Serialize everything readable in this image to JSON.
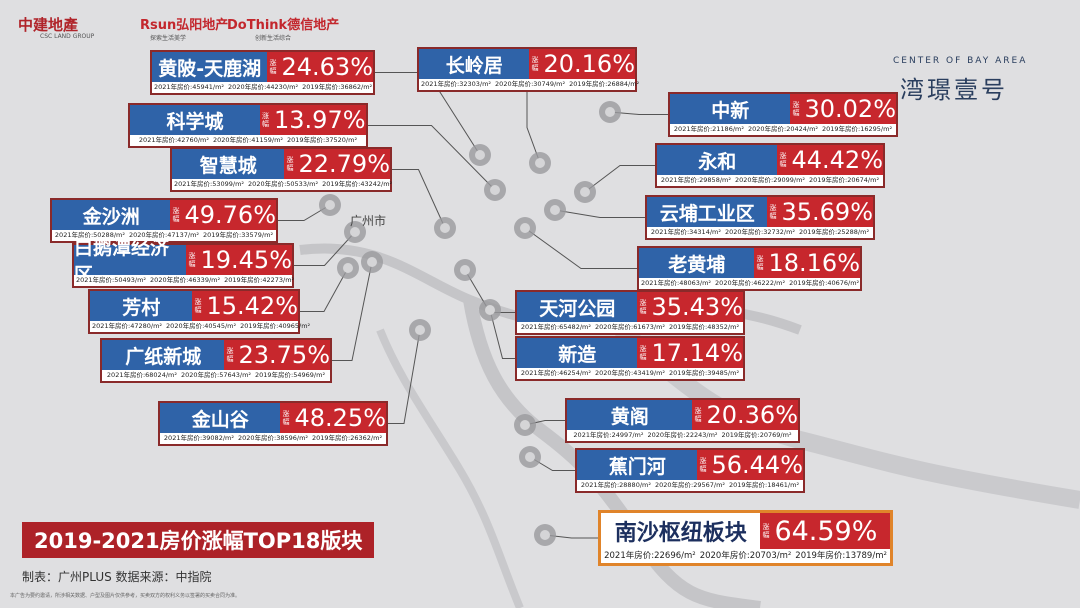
{
  "header": {
    "logos": [
      {
        "name": "中建地產",
        "sub": "CSC LAND GROUP"
      },
      {
        "name": "Rsun弘阳地产",
        "sub": "探索生活美学"
      },
      {
        "name": "DoThink德信地产",
        "sub": "创新生活综合"
      }
    ],
    "brand_en": "CENTER OF BAY AREA",
    "brand_cn": "湾璟壹号"
  },
  "map": {
    "city": "广州市"
  },
  "rate_tag": "涨幅",
  "blocks": [
    {
      "name": "黄陂-天鹿湖",
      "rate": "24.63%",
      "prices": [
        "2021年房价:45941/m²",
        "2020年房价:44230/m²",
        "2019年房价:36862/m²"
      ]
    },
    {
      "name": "科学城",
      "rate": "13.97%",
      "prices": [
        "2021年房价:42760/m²",
        "2020年房价:41159/m²",
        "2019年房价:37520/m²"
      ]
    },
    {
      "name": "智慧城",
      "rate": "22.79%",
      "prices": [
        "2021年房价:53099/m²",
        "2020年房价:50533/m²",
        "2019年房价:43242/m²"
      ]
    },
    {
      "name": "金沙洲",
      "rate": "49.76%",
      "prices": [
        "2021年房价:50288/m²",
        "2020年房价:47137/m²",
        "2019年房价:33579/m²"
      ]
    },
    {
      "name": "白鹅潭经济区",
      "rate": "19.45%",
      "prices": [
        "2021年房价:50493/m²",
        "2020年房价:46339/m²",
        "2019年房价:42273/m²"
      ]
    },
    {
      "name": "芳村",
      "rate": "15.42%",
      "prices": [
        "2021年房价:47280/m²",
        "2020年房价:40545/m²",
        "2019年房价:40965/m²"
      ]
    },
    {
      "name": "广纸新城",
      "rate": "23.75%",
      "prices": [
        "2021年房价:68024/m²",
        "2020年房价:57643/m²",
        "2019年房价:54969/m²"
      ]
    },
    {
      "name": "金山谷",
      "rate": "48.25%",
      "prices": [
        "2021年房价:39082/m²",
        "2020年房价:38596/m²",
        "2019年房价:26362/m²"
      ]
    },
    {
      "name": "长岭居",
      "rate": "20.16%",
      "prices": [
        "2021年房价:32303/m²",
        "2020年房价:30749/m²",
        "2019年房价:26884/m²"
      ]
    },
    {
      "name": "中新",
      "rate": "30.02%",
      "prices": [
        "2021年房价:21186/m²",
        "2020年房价:20424/m²",
        "2019年房价:16295/m²"
      ]
    },
    {
      "name": "永和",
      "rate": "44.42%",
      "prices": [
        "2021年房价:29858/m²",
        "2020年房价:29099/m²",
        "2019年房价:20674/m²"
      ]
    },
    {
      "name": "云埔工业区",
      "rate": "35.69%",
      "prices": [
        "2021年房价:34314/m²",
        "2020年房价:32732/m²",
        "2019年房价:25288/m²"
      ]
    },
    {
      "name": "老黄埔",
      "rate": "18.16%",
      "prices": [
        "2021年房价:48063/m²",
        "2020年房价:46222/m²",
        "2019年房价:40676/m²"
      ]
    },
    {
      "name": "天河公园",
      "rate": "35.43%",
      "prices": [
        "2021年房价:65482/m²",
        "2020年房价:61673/m²",
        "2019年房价:48352/m²"
      ]
    },
    {
      "name": "新造",
      "rate": "17.14%",
      "prices": [
        "2021年房价:46254/m²",
        "2020年房价:43419/m²",
        "2019年房价:39485/m²"
      ]
    },
    {
      "name": "黄阁",
      "rate": "20.36%",
      "prices": [
        "2021年房价:24997/m²",
        "2020年房价:22243/m²",
        "2019年房价:20769/m²"
      ]
    },
    {
      "name": "蕉门河",
      "rate": "56.44%",
      "prices": [
        "2021年房价:28880/m²",
        "2020年房价:29567/m²",
        "2019年房价:18461/m²"
      ]
    },
    {
      "name": "南沙枢纽板块",
      "rate": "64.59%",
      "prices": [
        "2021年房价:22696/m²",
        "2020年房价:20703/m²",
        "2019年房价:13789/m²"
      ]
    }
  ],
  "footer": {
    "title": "2019-2021房价涨幅TOP18版块",
    "source": "制表：广州PLUS  数据来源：中指院",
    "disclaimer": "本广告为要约邀请，所涉相关数据、户型及图片仅供参考，买卖双方的权利义务以签署的买卖合同为准。"
  }
}
